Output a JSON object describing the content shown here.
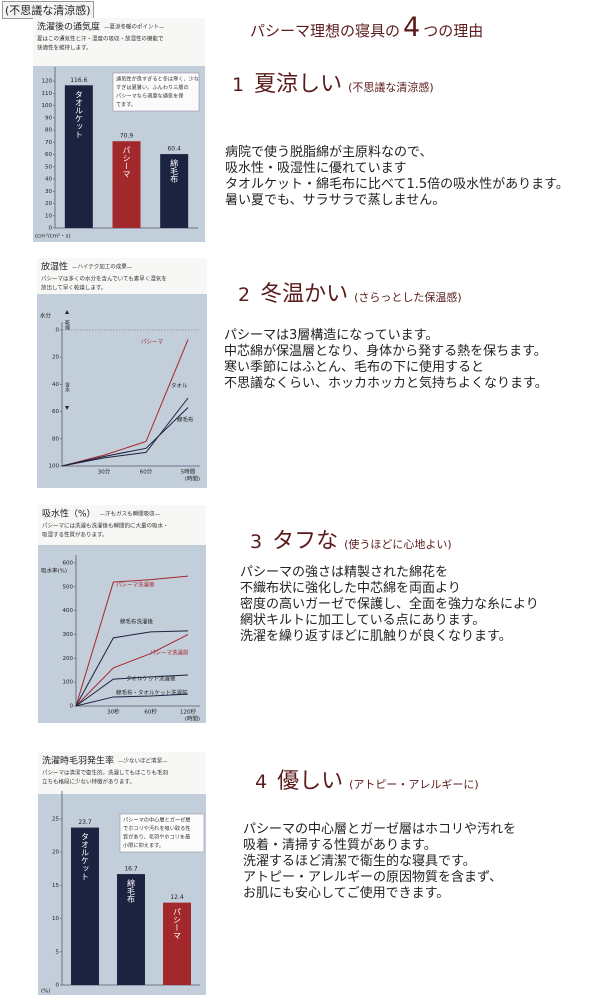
{
  "header": {
    "tag": "(不思議な清涼感)",
    "title_before": "パシーマ理想の寝具の",
    "title_number": "4",
    "title_after": "つの理由"
  },
  "sections": [
    {
      "number": "1",
      "heading": "夏涼しい",
      "subheading": "(不思議な清涼感)",
      "lines": [
        "病院で使う脱脂綿が主原料なので、",
        "吸水性・吸湿性に優れています",
        "タオルケット・綿毛布に比べて1.5倍の吸水性があります。",
        "暑い夏でも、サラサラで蒸しません。"
      ]
    },
    {
      "number": "2",
      "heading": "冬温かい",
      "subheading": "(さらっとした保温感)",
      "lines": [
        "パシーマは3層構造になっています。",
        "中芯綿が保温層となり、身体から発する熱を保ちます。",
        "寒い季節にはふとん、毛布の下に使用すると",
        "不思議なくらい、ホッカホッカと気持ちよくなります。"
      ]
    },
    {
      "number": "3",
      "heading": "タフな",
      "subheading": "(使うほどに心地よい)",
      "lines": [
        "パシーマの強さは精製された綿花を",
        "不織布状に強化した中芯綿を両面より",
        "密度の高いガーゼで保護し、全面を強力な糸により",
        "網状キルトに加工している点にあります。",
        "洗濯を繰り返すほどに肌触りが良くなります。"
      ]
    },
    {
      "number": "4",
      "heading": "優しい",
      "subheading": "(アトピー・アレルギーに)",
      "lines": [
        "パシーマの中心層とガーゼ層はホコリや汚れを",
        "吸着・清掃する性質があります。",
        "洗濯するほど清潔で衛生的な寝具です。",
        "アトピー・アレルギーの原因物質を含まず、",
        "お肌にも安心してご使用できます。"
      ]
    }
  ],
  "chart_data": [
    {
      "type": "bar",
      "title": "洗濯後の通気度",
      "subtitle": "—夏涼冬暖のポイント—",
      "description": [
        "夏はこの通気性と汗・湿度の吸収・放湿性の機能で",
        "快適性を維持します。"
      ],
      "annotation": [
        "通気性が良すぎると冬は寒く、少な",
        "すぎは夏暑い。ふんわり三層の",
        "パシーマなら適度な通気を保",
        "てます。"
      ],
      "y_label": "(cm³/cm²・s)",
      "categories": [
        "タオルケット",
        "パシーマ",
        "綿毛布"
      ],
      "values": [
        116.6,
        70.9,
        60.4
      ],
      "colors": [
        "#1c2340",
        "#a3282c",
        "#1c2340"
      ],
      "ylim": [
        0,
        125
      ],
      "yticks": [
        0,
        10,
        20,
        30,
        40,
        50,
        60,
        70,
        80,
        90,
        100,
        110,
        120
      ]
    },
    {
      "type": "line",
      "title": "放湿性",
      "subtitle": "—ハイテク加工の成果—",
      "description": [
        "パシーマは多くの水分を含んでいても素早く湿気を",
        "放出して早く乾燥します。"
      ],
      "y_label": "水分",
      "x_label": "(時間)",
      "markers": [
        "乾燥",
        "含水"
      ],
      "categories": [
        null,
        "30分",
        "60分",
        "5時間"
      ],
      "series": [
        {
          "name": "パシーマ",
          "color": "#a3282c",
          "values": [
            100,
            92,
            82,
            7
          ]
        },
        {
          "name": "タオル",
          "color": "#1c2340",
          "values": [
            100,
            93,
            87,
            57
          ]
        },
        {
          "name": "綿毛布",
          "color": "#1c2340",
          "values": [
            100,
            94,
            90,
            50
          ]
        }
      ],
      "ylim": [
        100,
        0
      ],
      "yticks": [
        0,
        20,
        40,
        60,
        80,
        100
      ]
    },
    {
      "type": "line",
      "title": "吸水性（%）",
      "subtitle": "—汗もガスも瞬間吸収—",
      "description": [
        "パシーマには洗濯も洗濯後も瞬間的に大量の吸水・",
        "吸湿する性質があります。"
      ],
      "y_label": "吸水率(%)",
      "x_label": "(時間)",
      "categories": [
        null,
        "30秒",
        "60秒",
        "120秒"
      ],
      "series": [
        {
          "name": "パシーマ洗濯後",
          "color": "#a3282c",
          "values": [
            0,
            520,
            530,
            545
          ]
        },
        {
          "name": "綿毛布洗濯後",
          "color": "#1c2340",
          "values": [
            0,
            286,
            311,
            315
          ]
        },
        {
          "name": "パシーマ洗濯前",
          "color": "#a3282c",
          "values": [
            0,
            160,
            220,
            300
          ]
        },
        {
          "name": "タオルケット洗濯後",
          "color": "#1c2340",
          "values": [
            0,
            113,
            122,
            130
          ]
        },
        {
          "name": "綿毛布・タオルケット洗濯前",
          "color": "#1c2340",
          "values": [
            0,
            38,
            42,
            50
          ]
        }
      ],
      "ylim": [
        0,
        600
      ],
      "yticks": [
        0,
        100,
        200,
        300,
        400,
        500,
        600
      ]
    },
    {
      "type": "bar",
      "title": "洗濯時毛羽発生率",
      "subtitle": "—少ないほど清潔—",
      "description": [
        "パシーマは清潔で衛生的。洗濯してもほこりも毛羽",
        "立ちも格段に少ない特徴があります。"
      ],
      "annotation": [
        "パシーマの中心層とガーゼ層",
        "でホコリや汚れを吸い取る性",
        "質があり、毛羽やホコリを最",
        "小限に抑えます。"
      ],
      "y_label": "(%)",
      "categories": [
        "タオルケット",
        "綿毛布",
        "パシーマ"
      ],
      "values": [
        23.7,
        16.7,
        12.4
      ],
      "colors": [
        "#1c2340",
        "#1c2340",
        "#a3282c"
      ],
      "ylim": [
        0,
        28
      ],
      "yticks": [
        0,
        5,
        10,
        15,
        20,
        25
      ]
    }
  ]
}
